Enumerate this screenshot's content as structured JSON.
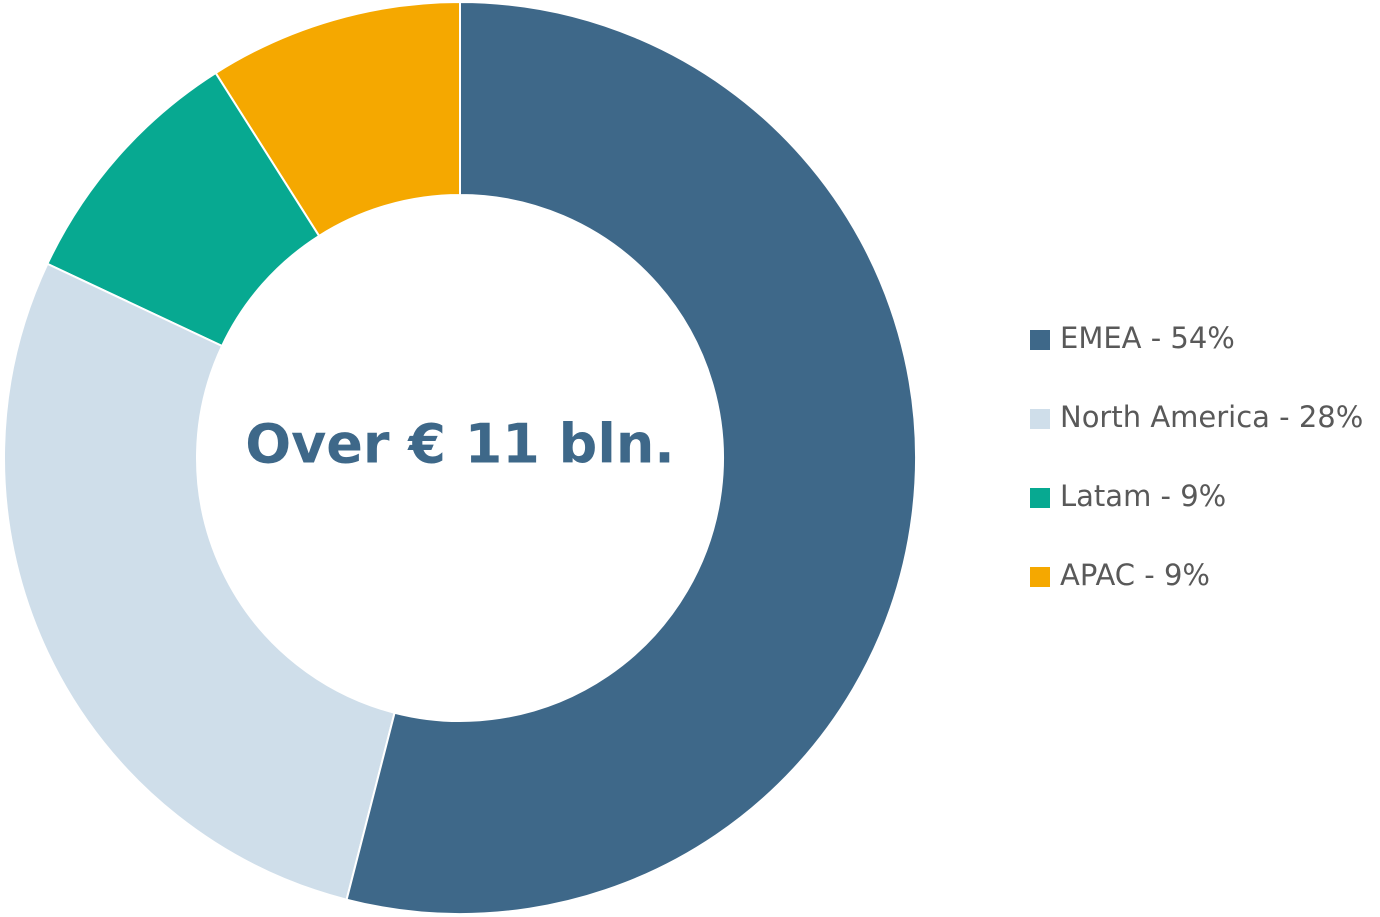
{
  "chart_data": {
    "type": "donut",
    "annotation": "Over € 11 bln.",
    "categories": [
      "EMEA - 54%",
      "North America - 28%",
      "Latam - 9%",
      "APAC - 9%"
    ],
    "values": [
      54,
      28,
      9,
      9
    ],
    "colors": [
      "#3e6889",
      "#cfdeea",
      "#07a991",
      "#f5a800"
    ],
    "legend": "right"
  }
}
